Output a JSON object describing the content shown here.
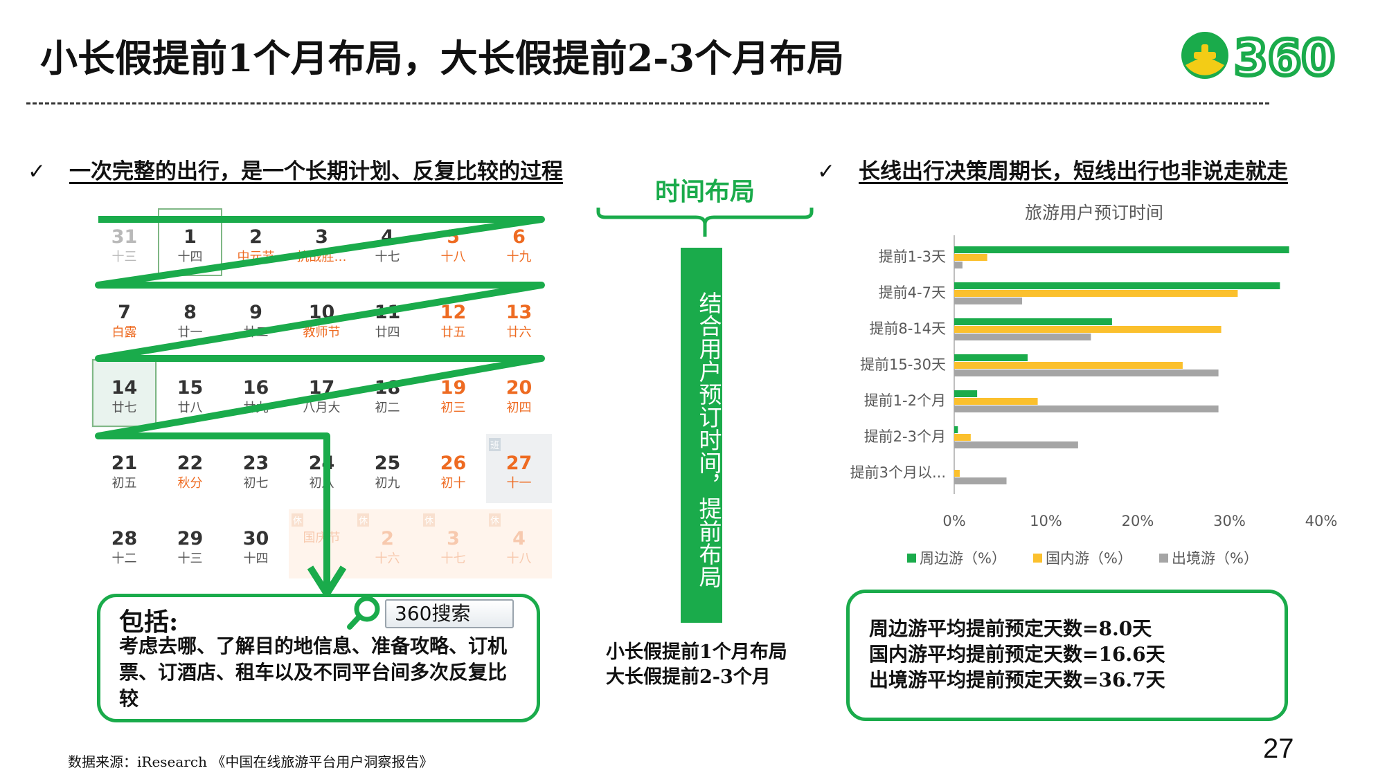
{
  "title": "小长假提前1个月布局，大长假提前2-3个月布局",
  "logo": {
    "text": "360",
    "colors": {
      "green": "#1aab4b",
      "yellow": "#f3cc16"
    }
  },
  "left_heading": {
    "check": "✓",
    "text": "一次完整的出行，是一个长期计划、反复比较的过程"
  },
  "right_heading": {
    "check": "✓",
    "text": "长线出行决策周期长，短线出行也非说走就走"
  },
  "calendar": {
    "rows": [
      [
        {
          "num": "31",
          "sub": "十三",
          "style": "dim"
        },
        {
          "num": "1",
          "sub": "十四",
          "style": "boxed"
        },
        {
          "num": "2",
          "sub": "中元节",
          "style": "fest"
        },
        {
          "num": "3",
          "sub": "抗战胜…",
          "style": "fest"
        },
        {
          "num": "4",
          "sub": "十七",
          "style": ""
        },
        {
          "num": "5",
          "sub": "十八",
          "style": "weekend"
        },
        {
          "num": "6",
          "sub": "十九",
          "style": "weekend"
        }
      ],
      [
        {
          "num": "7",
          "sub": "白露",
          "style": "fest"
        },
        {
          "num": "8",
          "sub": "廿一",
          "style": ""
        },
        {
          "num": "9",
          "sub": "廿二",
          "style": ""
        },
        {
          "num": "10",
          "sub": "教师节",
          "style": "fest"
        },
        {
          "num": "11",
          "sub": "廿四",
          "style": ""
        },
        {
          "num": "12",
          "sub": "廿五",
          "style": "weekend"
        },
        {
          "num": "13",
          "sub": "廿六",
          "style": "weekend"
        }
      ],
      [
        {
          "num": "14",
          "sub": "廿七",
          "style": "boxed shaded"
        },
        {
          "num": "15",
          "sub": "廿八",
          "style": ""
        },
        {
          "num": "16",
          "sub": "廿九",
          "style": ""
        },
        {
          "num": "17",
          "sub": "八月大",
          "style": ""
        },
        {
          "num": "18",
          "sub": "初二",
          "style": ""
        },
        {
          "num": "19",
          "sub": "初三",
          "style": "weekend"
        },
        {
          "num": "20",
          "sub": "初四",
          "style": "weekend"
        }
      ],
      [
        {
          "num": "21",
          "sub": "初五",
          "style": ""
        },
        {
          "num": "22",
          "sub": "秋分",
          "style": "fest"
        },
        {
          "num": "23",
          "sub": "初七",
          "style": ""
        },
        {
          "num": "24",
          "sub": "初八",
          "style": ""
        },
        {
          "num": "25",
          "sub": "初九",
          "style": ""
        },
        {
          "num": "26",
          "sub": "初十",
          "style": "weekend"
        },
        {
          "num": "27",
          "sub": "十一",
          "style": "grey weekend-num",
          "tag": "班"
        }
      ],
      [
        {
          "num": "28",
          "sub": "十二",
          "style": ""
        },
        {
          "num": "29",
          "sub": "十三",
          "style": ""
        },
        {
          "num": "30",
          "sub": "十四",
          "style": ""
        },
        {
          "num": "",
          "sub": "国庆节",
          "style": "nextm faint",
          "tag": "休"
        },
        {
          "num": "2",
          "sub": "十六",
          "style": "nextm faint",
          "tag": "休"
        },
        {
          "num": "3",
          "sub": "十七",
          "style": "nextm faint",
          "tag": "休"
        },
        {
          "num": "4",
          "sub": "十八",
          "style": "nextm faint",
          "tag": "休"
        }
      ]
    ]
  },
  "include_box": {
    "label": "包括:",
    "body": "考虑去哪、了解目的地信息、准备攻略、订机票、订酒店、租车以及不同平台间多次反复比较",
    "search_value": "360搜索"
  },
  "timeline": {
    "label": "时间布局",
    "vertical": "结合用户预订时间，提前布局",
    "summary_line1": "小长假提前1个月布局",
    "summary_line2": "大长假提前2-3个月"
  },
  "chart_data": {
    "type": "bar",
    "orientation": "horizontal",
    "title": "旅游用户预订时间",
    "categories": [
      "提前1-3天",
      "提前4-7天",
      "提前8-14天",
      "提前15-30天",
      "提前1-2个月",
      "提前2-3个月",
      "提前3个月以..."
    ],
    "series": [
      {
        "name": "周边游（%）",
        "color": "#1aab4b",
        "values": [
          36.5,
          35.5,
          17.2,
          8.0,
          2.5,
          0.4,
          0.0
        ]
      },
      {
        "name": "国内游（%）",
        "color": "#fbc02d",
        "values": [
          3.6,
          30.9,
          29.1,
          24.9,
          9.1,
          1.8,
          0.6
        ]
      },
      {
        "name": "出境游（%）",
        "color": "#a5a5a5",
        "values": [
          0.9,
          7.4,
          14.9,
          28.8,
          28.8,
          13.5,
          5.7
        ]
      }
    ],
    "xlim": [
      0,
      40
    ],
    "x_ticks": [
      "0%",
      "10%",
      "20%",
      "30%",
      "40%"
    ],
    "legend": "bottom",
    "grid": false
  },
  "stats": {
    "line1": "周边游平均提前预定天数=8.0天",
    "line2": "国内游平均提前预定天数=16.6天",
    "line3": "出境游平均提前预定天数=36.7天"
  },
  "source": "数据来源：iResearch 《中国在线旅游平台用户洞察报告》",
  "page_number": "27"
}
